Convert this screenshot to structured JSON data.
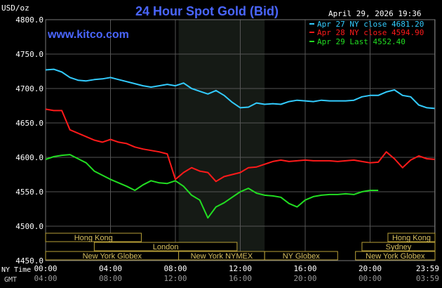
{
  "chart_data": {
    "type": "line",
    "title": "24 Hour Spot Gold (Bid)",
    "unit_label": "USD/oz",
    "website": "www.kitco.com",
    "date_stamp": "April 29, 2026 19:36",
    "ylim": [
      4450,
      4800
    ],
    "y_ticks": [
      "4800.0",
      "4750.0",
      "4700.0",
      "4650.0",
      "4600.0",
      "4550.0",
      "4500.0",
      "4450.0"
    ],
    "y_tick_values": [
      4800,
      4750,
      4700,
      4650,
      4600,
      4550,
      4500,
      4450
    ],
    "xlim": [
      0,
      24
    ],
    "x_ticks_ny": [
      "00:00",
      "04:00",
      "08:00",
      "12:00",
      "16:00",
      "20:00",
      "23:59"
    ],
    "x_ticks_gmt": [
      "04:00",
      "08:00",
      "12:00",
      "16:00",
      "20:00",
      "00:00",
      "03:59"
    ],
    "x_tick_hours": [
      0,
      4,
      8,
      12,
      16,
      20,
      23.98
    ],
    "x_row_label_ny": "NY Time",
    "x_row_label_gmt": "GMT",
    "highlight_hours": [
      8.2,
      13.5
    ],
    "series": [
      {
        "name": "Apr 27 NY close 4681.20",
        "color": "#33ccff",
        "x": [
          0,
          0.5,
          1,
          1.5,
          2,
          2.5,
          3,
          3.5,
          4,
          4.5,
          5,
          5.5,
          6,
          6.5,
          7,
          7.5,
          8,
          8.5,
          9,
          9.5,
          10,
          10.5,
          11,
          11.5,
          12,
          12.5,
          13,
          13.5,
          14,
          14.5,
          15,
          15.5,
          16,
          16.5,
          17,
          17.5,
          18,
          18.5,
          19,
          19.5,
          20,
          20.5,
          21,
          21.5,
          22,
          22.5,
          23,
          23.5,
          23.98
        ],
        "values": [
          4727,
          4728,
          4724,
          4716,
          4712,
          4711,
          4713,
          4714,
          4716,
          4713,
          4710,
          4707,
          4704,
          4702,
          4704,
          4706,
          4704,
          4708,
          4700,
          4696,
          4692,
          4697,
          4690,
          4680,
          4672,
          4673,
          4679,
          4677,
          4678,
          4677,
          4681,
          4683,
          4682,
          4681,
          4683,
          4682,
          4682,
          4682,
          4683,
          4688,
          4690,
          4690,
          4695,
          4698,
          4690,
          4688,
          4676,
          4672,
          4671
        ]
      },
      {
        "name": "Apr 28 NY close 4594.90",
        "color": "#ff1a1a",
        "x": [
          0,
          0.5,
          1,
          1.5,
          2,
          2.5,
          3,
          3.5,
          4,
          4.5,
          5,
          5.5,
          6,
          6.5,
          7,
          7.5,
          8,
          8.5,
          9,
          9.5,
          10,
          10.5,
          11,
          11.5,
          12,
          12.5,
          13,
          13.5,
          14,
          14.5,
          15,
          15.5,
          16,
          16.5,
          17,
          17.5,
          18,
          18.5,
          19,
          19.5,
          20,
          20.5,
          21,
          21.5,
          22,
          22.5,
          23,
          23.5,
          23.98
        ],
        "values": [
          4670,
          4668,
          4668,
          4640,
          4635,
          4630,
          4625,
          4622,
          4626,
          4622,
          4620,
          4615,
          4612,
          4610,
          4608,
          4605,
          4568,
          4578,
          4585,
          4580,
          4578,
          4565,
          4572,
          4575,
          4578,
          4585,
          4586,
          4590,
          4594,
          4596,
          4594,
          4595,
          4596,
          4595,
          4595,
          4595,
          4594,
          4595,
          4596,
          4594,
          4592,
          4593,
          4608,
          4598,
          4585,
          4596,
          4602,
          4598,
          4597
        ]
      },
      {
        "name": "Apr 29 Last 4552.40",
        "color": "#22dd22",
        "x": [
          0,
          0.5,
          1,
          1.5,
          2,
          2.5,
          3,
          3.5,
          4,
          4.5,
          5,
          5.5,
          6,
          6.5,
          7,
          7.5,
          8,
          8.5,
          9,
          9.5,
          10,
          10.5,
          11,
          11.5,
          12,
          12.5,
          13,
          13.5,
          14,
          14.5,
          15,
          15.5,
          16,
          16.5,
          17,
          17.5,
          18,
          18.5,
          19,
          19.5,
          20,
          20.5
        ],
        "values": [
          4597,
          4601,
          4603,
          4604,
          4598,
          4592,
          4580,
          4574,
          4568,
          4563,
          4558,
          4552,
          4560,
          4566,
          4563,
          4562,
          4566,
          4558,
          4545,
          4538,
          4512,
          4528,
          4534,
          4542,
          4550,
          4555,
          4548,
          4545,
          4544,
          4542,
          4533,
          4528,
          4538,
          4543,
          4545,
          4546,
          4546,
          4547,
          4546,
          4550,
          4552,
          4552
        ]
      }
    ],
    "session_rows": [
      [
        {
          "label": "Hong Kong",
          "start": 0,
          "end": 5.9
        },
        {
          "label": "Hong Kong",
          "start": 21.1,
          "end": 24
        }
      ],
      [
        {
          "label": "London",
          "start": 3,
          "end": 11.8
        },
        {
          "label": "Sydney",
          "start": 19.5,
          "end": 24
        }
      ],
      [
        {
          "label": "New York Globex",
          "start": 0,
          "end": 8.2
        },
        {
          "label": "New York NYMEX",
          "start": 8.2,
          "end": 13.5
        },
        {
          "label": "NY Globex",
          "start": 13.5,
          "end": 18
        },
        {
          "label": "New York Globex",
          "start": 19.1,
          "end": 24
        }
      ]
    ]
  }
}
